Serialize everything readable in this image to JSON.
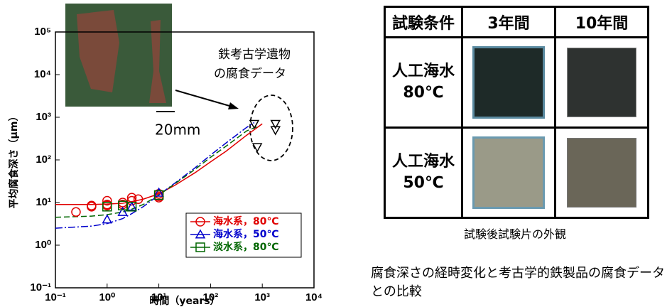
{
  "chart_data": {
    "type": "scatter",
    "x_label": "時間（years）",
    "y_label": "平均腐食深さ（μm）",
    "xscale": "log",
    "yscale": "log",
    "xlim": [
      0.1,
      10000
    ],
    "ylim": [
      0.1,
      100000
    ],
    "xticks": [
      {
        "value": 0.1,
        "label": "10⁻¹"
      },
      {
        "value": 1,
        "label": "10⁰"
      },
      {
        "value": 10,
        "label": "10¹"
      },
      {
        "value": 100,
        "label": "10²"
      },
      {
        "value": 1000,
        "label": "10³"
      },
      {
        "value": 10000,
        "label": "10⁴"
      }
    ],
    "yticks": [
      {
        "value": 0.1,
        "label": "10⁻¹"
      },
      {
        "value": 1,
        "label": "10⁰"
      },
      {
        "value": 10,
        "label": "10¹"
      },
      {
        "value": 100,
        "label": "10²"
      },
      {
        "value": 1000,
        "label": "10³"
      },
      {
        "value": 10000,
        "label": "10⁴"
      },
      {
        "value": 100000,
        "label": "10⁵"
      }
    ],
    "legend": "lower right",
    "series": [
      {
        "name": "海水系，80℃",
        "color": "#e00000",
        "marker": "circle",
        "x": [
          0.25,
          0.5,
          0.5,
          1,
          1,
          1,
          2,
          2,
          3,
          3,
          4,
          10,
          10,
          10
        ],
        "values": [
          6,
          8.5,
          8,
          11,
          9,
          8.5,
          10,
          9,
          13,
          11,
          12,
          16,
          14,
          13
        ]
      },
      {
        "name": "海水系，50℃",
        "color": "#0000cc",
        "marker": "triangle",
        "x": [
          1,
          2,
          3,
          10
        ],
        "values": [
          4,
          6,
          8,
          17
        ]
      },
      {
        "name": "淡水系，80℃",
        "color": "#006600",
        "marker": "square",
        "x": [
          1,
          2,
          3,
          10
        ],
        "values": [
          8,
          8.5,
          8,
          15
        ]
      }
    ],
    "archaeological": {
      "color": "#000000",
      "marker": "triangle-down",
      "x": [
        700,
        1800,
        1800,
        800
      ],
      "values": [
        700,
        700,
        500,
        200
      ]
    },
    "fits": [
      {
        "color": "#e00000",
        "dash": "solid",
        "x": [
          0.1,
          0.5,
          1,
          2,
          3,
          5,
          10,
          20,
          50,
          100,
          200,
          500,
          1000
        ],
        "values": [
          9,
          9,
          9.2,
          9.6,
          10.5,
          12,
          16,
          25,
          50,
          90,
          160,
          380,
          700
        ]
      },
      {
        "color": "#0000cc",
        "dash": "dashdot",
        "x": [
          0.1,
          0.5,
          1,
          2,
          3,
          5,
          10,
          20,
          50,
          100,
          200,
          500,
          700
        ],
        "values": [
          2.5,
          2.8,
          3.2,
          4.2,
          5.5,
          8,
          15,
          28,
          65,
          130,
          250,
          580,
          750
        ]
      },
      {
        "color": "#006600",
        "dash": "dashed",
        "x": [
          0.1,
          0.5,
          1,
          2,
          3,
          5,
          10,
          20,
          50,
          100,
          200,
          500,
          800
        ],
        "values": [
          4.5,
          4.8,
          5.2,
          6,
          7,
          9,
          15,
          27,
          60,
          115,
          210,
          480,
          600
        ]
      }
    ],
    "annotation": [
      "鉄考古学遺物",
      "の腐食データ"
    ],
    "scale_bar": "20mm"
  },
  "table": {
    "header": [
      "試験条件",
      "3年間",
      "10年間"
    ],
    "rows": [
      {
        "label": [
          "人工海水",
          "80℃"
        ]
      },
      {
        "label": [
          "人工海水",
          "50℃"
        ]
      }
    ]
  },
  "table_caption": "試験後試験片の外観",
  "figure_caption": "腐食深さの経時変化と考古学的鉄製品の腐食データとの比較"
}
